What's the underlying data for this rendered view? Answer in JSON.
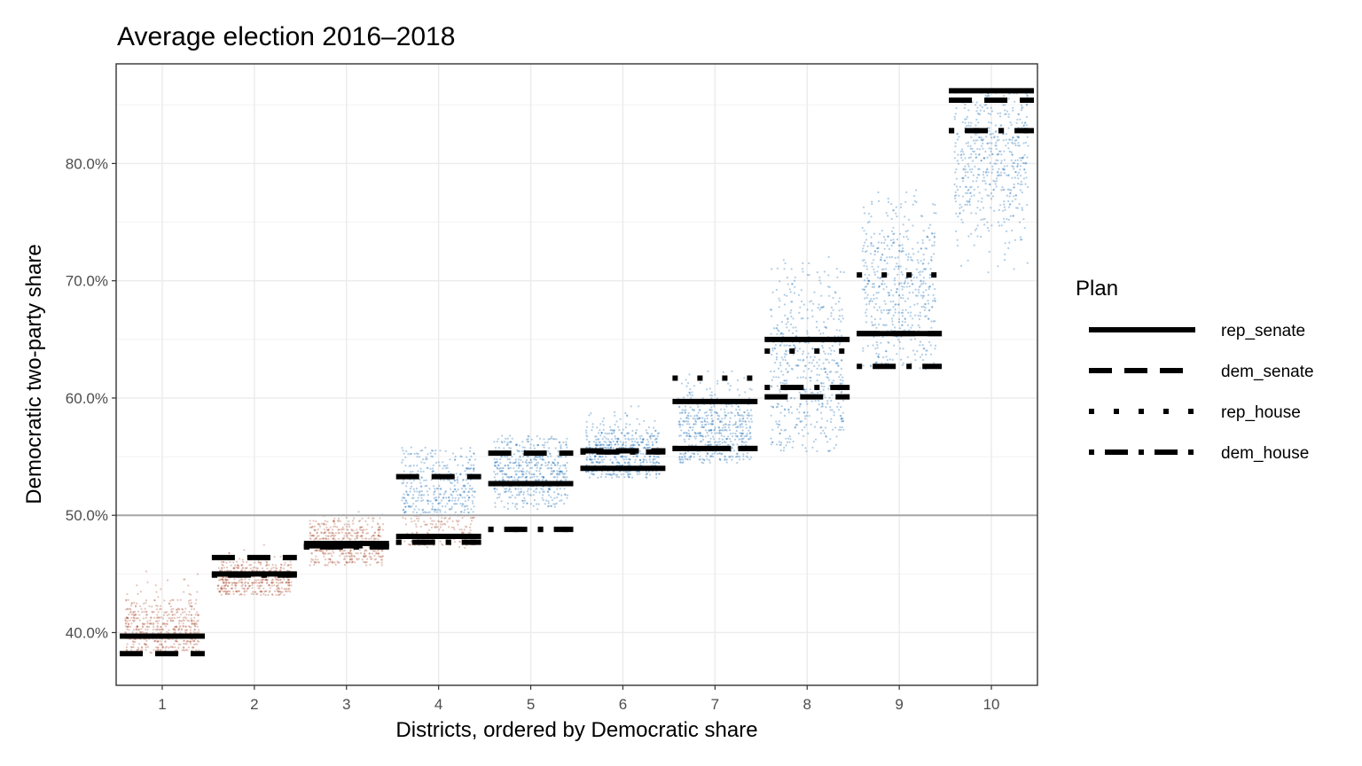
{
  "chart_data": {
    "type": "scatter",
    "title": "Average election 2016–2018",
    "xlabel": "Districts, ordered by Democratic share",
    "ylabel": "Democratic two-party share",
    "x_categories": [
      "1",
      "2",
      "3",
      "4",
      "5",
      "6",
      "7",
      "8",
      "9",
      "10"
    ],
    "y_ticks": [
      {
        "value": 0.4,
        "label": "40.0%"
      },
      {
        "value": 0.5,
        "label": "50.0%"
      },
      {
        "value": 0.6,
        "label": "60.0%"
      },
      {
        "value": 0.7,
        "label": "70.0%"
      },
      {
        "value": 0.8,
        "label": "80.0%"
      }
    ],
    "ylim": [
      0.355,
      0.885
    ],
    "reference_line": 0.5,
    "grid": true,
    "colors": {
      "above_50": "#1f6fb4",
      "below_50": "#b05a3f",
      "reference_line": "#a6a6a6"
    },
    "simulated_distributions": [
      {
        "district": 1,
        "median": 0.405,
        "low": 0.383,
        "high": 0.461
      },
      {
        "district": 2,
        "median": 0.446,
        "low": 0.432,
        "high": 0.478
      },
      {
        "district": 3,
        "median": 0.476,
        "low": 0.457,
        "high": 0.502
      },
      {
        "district": 4,
        "median": 0.515,
        "low": 0.472,
        "high": 0.558
      },
      {
        "district": 5,
        "median": 0.537,
        "low": 0.505,
        "high": 0.567
      },
      {
        "district": 6,
        "median": 0.554,
        "low": 0.532,
        "high": 0.598
      },
      {
        "district": 7,
        "median": 0.572,
        "low": 0.545,
        "high": 0.645
      },
      {
        "district": 8,
        "median": 0.625,
        "low": 0.555,
        "high": 0.722
      },
      {
        "district": 9,
        "median": 0.695,
        "low": 0.625,
        "high": 0.778
      },
      {
        "district": 10,
        "median": 0.803,
        "low": 0.705,
        "high": 0.862
      }
    ],
    "legend": {
      "title": "Plan",
      "position": "right",
      "entries": [
        {
          "name": "rep_senate",
          "linetype": "solid"
        },
        {
          "name": "dem_senate",
          "linetype": "dashed"
        },
        {
          "name": "rep_house",
          "linetype": "dotted"
        },
        {
          "name": "dem_house",
          "linetype": "dotdash"
        }
      ]
    },
    "series": [
      {
        "name": "rep_senate",
        "linetype": "solid",
        "values": [
          0.397,
          0.45,
          0.476,
          0.482,
          0.527,
          0.54,
          0.597,
          0.65,
          0.655,
          0.862
        ]
      },
      {
        "name": "dem_senate",
        "linetype": "dashed",
        "values": [
          0.382,
          0.464,
          0.474,
          0.533,
          0.553,
          0.555,
          0.557,
          0.601,
          0.655,
          0.854
        ]
      },
      {
        "name": "rep_house",
        "linetype": "dotted",
        "values": [
          0.397,
          0.449,
          0.473,
          0.477,
          0.488,
          0.554,
          0.617,
          0.64,
          0.705,
          0.828
        ]
      },
      {
        "name": "dem_house",
        "linetype": "dotdash",
        "values": [
          0.397,
          0.449,
          0.473,
          0.477,
          0.488,
          0.554,
          0.557,
          0.609,
          0.627,
          0.828
        ]
      }
    ]
  }
}
